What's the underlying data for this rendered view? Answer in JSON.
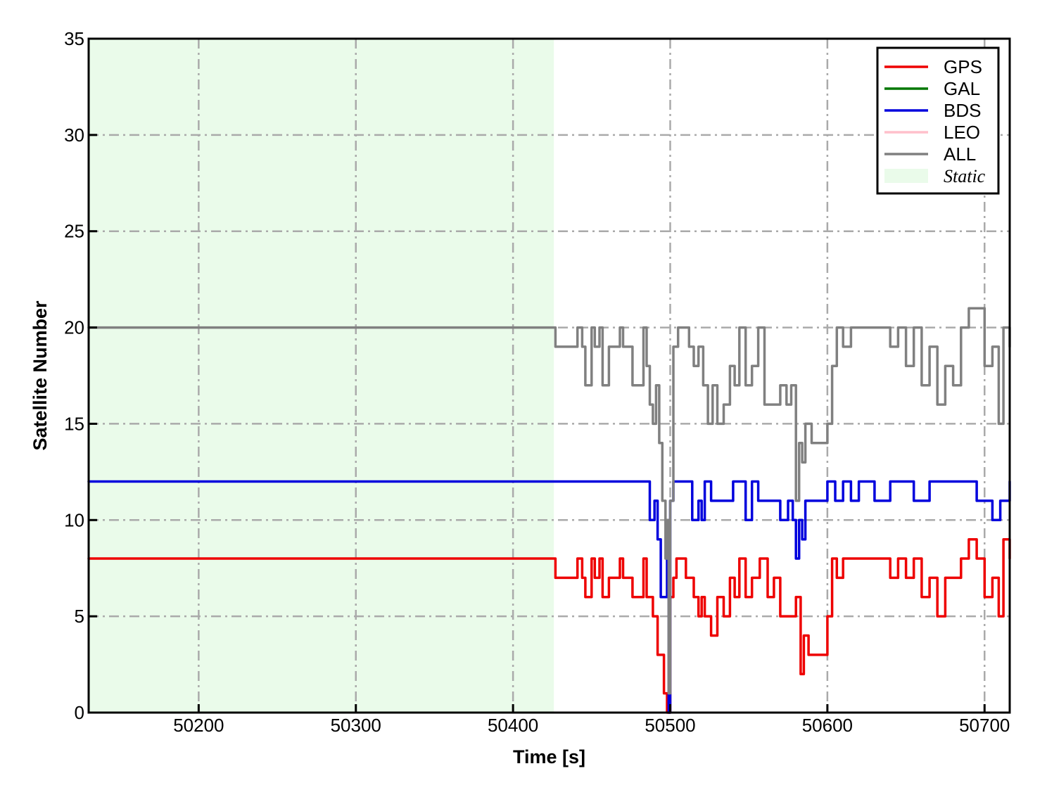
{
  "chart_data": {
    "type": "line",
    "title": "",
    "xlabel": "Time [s]",
    "ylabel": "Satellite Number",
    "xlim": [
      50130,
      50716
    ],
    "ylim": [
      0,
      35
    ],
    "xticks": [
      50200,
      50300,
      50400,
      50500,
      50600,
      50700
    ],
    "yticks": [
      0,
      5,
      10,
      15,
      20,
      25,
      30,
      35
    ],
    "grid": true,
    "legend_position": "top-right",
    "static_region": {
      "label": "Static",
      "x_start": 50130,
      "x_end": 50426,
      "color": "#eafbea"
    },
    "series": [
      {
        "name": "GPS",
        "color": "#ee0000",
        "x": [
          50130,
          50426,
          50427,
          50439,
          50441,
          50444,
          50446,
          50450,
          50452,
          50455,
          50457,
          50461,
          50463,
          50468,
          50470,
          50474,
          50476,
          50483,
          50485,
          50489,
          50492,
          50494,
          50496,
          50498,
          50500,
          50502,
          50504,
          50508,
          50510,
          50515,
          50518,
          50520,
          50522,
          50526,
          50530,
          50534,
          50538,
          50541,
          50544,
          50548,
          50552,
          50557,
          50562,
          50566,
          50570,
          50575,
          50580,
          50583,
          50585,
          50588,
          50591,
          50596,
          50600,
          50603,
          50606,
          50610,
          50615,
          50625,
          50635,
          50640,
          50645,
          50650,
          50655,
          50660,
          50665,
          50670,
          50675,
          50680,
          50685,
          50690,
          50695,
          50700,
          50705,
          50709,
          50712,
          50716
        ],
        "values": [
          8,
          8,
          7,
          7,
          8,
          7,
          6,
          8,
          7,
          8,
          6,
          7,
          7,
          8,
          7,
          7,
          6,
          8,
          6,
          5,
          3,
          3,
          1,
          0,
          6,
          7,
          8,
          8,
          7,
          6,
          5,
          6,
          5,
          4,
          6,
          5,
          7,
          6,
          8,
          6,
          7,
          8,
          6,
          7,
          5,
          5,
          6,
          2,
          4,
          3,
          3,
          3,
          5,
          8,
          7,
          8,
          8,
          8,
          8,
          7,
          8,
          7,
          8,
          6,
          7,
          5,
          7,
          7,
          8,
          9,
          8,
          6,
          7,
          5,
          9,
          8
        ]
      },
      {
        "name": "GAL",
        "color": "#007700",
        "x": [],
        "values": []
      },
      {
        "name": "BDS",
        "color": "#0000dd",
        "x": [
          50130,
          50426,
          50485,
          50487,
          50490,
          50492,
          50494,
          50496,
          50498,
          50499,
          50500,
          50502,
          50505,
          50512,
          50514,
          50518,
          50520,
          50522,
          50526,
          50530,
          50535,
          50540,
          50545,
          50548,
          50552,
          50556,
          50560,
          50565,
          50570,
          50575,
          50578,
          50580,
          50582,
          50584,
          50586,
          50590,
          50595,
          50600,
          50605,
          50610,
          50615,
          50620,
          50625,
          50630,
          50640,
          50650,
          50655,
          50660,
          50665,
          50670,
          50675,
          50680,
          50685,
          50690,
          50695,
          50700,
          50705,
          50710,
          50714,
          50716
        ],
        "values": [
          12,
          12,
          12,
          10,
          11,
          9,
          6,
          6,
          8,
          0,
          11,
          12,
          12,
          12,
          10,
          11,
          10,
          12,
          11,
          11,
          11,
          12,
          12,
          10,
          12,
          11,
          11,
          11,
          10,
          11,
          10,
          8,
          10,
          9,
          11,
          11,
          11,
          12,
          11,
          12,
          11,
          12,
          12,
          11,
          12,
          12,
          11,
          11,
          12,
          12,
          12,
          12,
          12,
          12,
          11,
          11,
          10,
          11,
          11,
          12
        ]
      },
      {
        "name": "LEO",
        "color": "#ffc0cb",
        "x": [],
        "values": []
      },
      {
        "name": "ALL",
        "color": "#808080",
        "x": [
          50130,
          50426,
          50427,
          50439,
          50441,
          50444,
          50446,
          50450,
          50452,
          50455,
          50457,
          50461,
          50463,
          50468,
          50470,
          50474,
          50476,
          50483,
          50485,
          50487,
          50489,
          50491,
          50493,
          50495,
          50497,
          50498,
          50499,
          50500,
          50502,
          50505,
          50508,
          50512,
          50515,
          50518,
          50521,
          50524,
          50527,
          50530,
          50534,
          50538,
          50541,
          50544,
          50548,
          50552,
          50556,
          50560,
          50565,
          50570,
          50574,
          50577,
          50580,
          50582,
          50584,
          50586,
          50590,
          50595,
          50600,
          50603,
          50606,
          50610,
          50615,
          50625,
          50635,
          50640,
          50645,
          50650,
          50655,
          50660,
          50665,
          50670,
          50675,
          50680,
          50685,
          50690,
          50695,
          50700,
          50705,
          50709,
          50712,
          50716
        ],
        "values": [
          20,
          20,
          19,
          19,
          20,
          19,
          17,
          20,
          19,
          20,
          17,
          19,
          19,
          20,
          19,
          19,
          17,
          20,
          18,
          16,
          15,
          17,
          14,
          11,
          8,
          10,
          1,
          11,
          19,
          20,
          20,
          19,
          18,
          19,
          17,
          15,
          17,
          15,
          16,
          18,
          17,
          20,
          17,
          18,
          20,
          16,
          16,
          17,
          16,
          17,
          11,
          14,
          13,
          15,
          14,
          14,
          15,
          18,
          20,
          19,
          20,
          20,
          20,
          19,
          20,
          18,
          20,
          17,
          19,
          16,
          18,
          17,
          20,
          21,
          21,
          18,
          19,
          15,
          20,
          19
        ]
      }
    ]
  }
}
